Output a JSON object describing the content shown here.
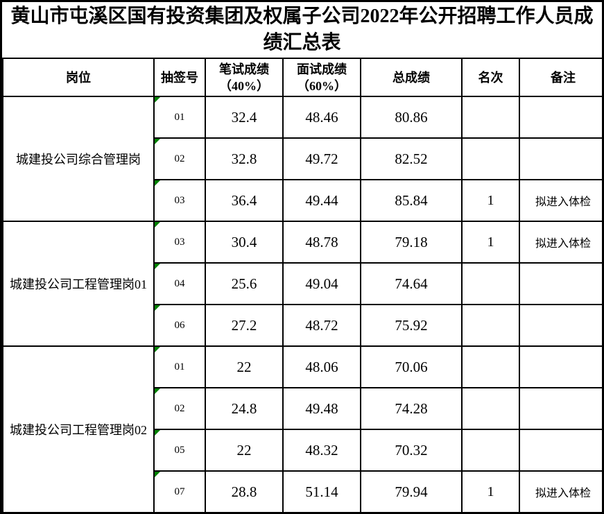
{
  "title": "黄山市屯溪区国有投资集团及权属子公司2022年公开招聘工作人员成绩汇总表",
  "columns": {
    "position": {
      "label": "岗位"
    },
    "lot": {
      "label": "抽签号"
    },
    "written": {
      "label": "笔试成绩",
      "sublabel": "（40%）"
    },
    "interview": {
      "label": "面试成绩",
      "sublabel": "（60%）"
    },
    "total": {
      "label": "总成绩"
    },
    "rank": {
      "label": "名次"
    },
    "note": {
      "label": "备注"
    }
  },
  "groups": [
    {
      "position": "城建投公司综合管理岗",
      "rows": [
        {
          "lot": "01",
          "written": "32.4",
          "interview": "48.46",
          "total": "80.86",
          "rank": "",
          "note": ""
        },
        {
          "lot": "02",
          "written": "32.8",
          "interview": "49.72",
          "total": "82.52",
          "rank": "",
          "note": ""
        },
        {
          "lot": "03",
          "written": "36.4",
          "interview": "49.44",
          "total": "85.84",
          "rank": "1",
          "note": "拟进入体检"
        }
      ]
    },
    {
      "position": "城建投公司工程管理岗01",
      "rows": [
        {
          "lot": "03",
          "written": "30.4",
          "interview": "48.78",
          "total": "79.18",
          "rank": "1",
          "note": "拟进入体检"
        },
        {
          "lot": "04",
          "written": "25.6",
          "interview": "49.04",
          "total": "74.64",
          "rank": "",
          "note": ""
        },
        {
          "lot": "06",
          "written": "27.2",
          "interview": "48.72",
          "total": "75.92",
          "rank": "",
          "note": ""
        }
      ]
    },
    {
      "position": "城建投公司工程管理岗02",
      "rows": [
        {
          "lot": "01",
          "written": "22",
          "interview": "48.06",
          "total": "70.06",
          "rank": "",
          "note": ""
        },
        {
          "lot": "02",
          "written": "24.8",
          "interview": "49.48",
          "total": "74.28",
          "rank": "",
          "note": ""
        },
        {
          "lot": "05",
          "written": "22",
          "interview": "48.32",
          "total": "70.32",
          "rank": "",
          "note": ""
        },
        {
          "lot": "07",
          "written": "28.8",
          "interview": "51.14",
          "total": "79.94",
          "rank": "1",
          "note": "拟进入体检"
        }
      ]
    }
  ],
  "icons": {
    "error_indicator": "excel-number-stored-as-text-triangle"
  },
  "colors": {
    "error_indicator_green": "#008000",
    "border": "#000000",
    "background": "#ffffff",
    "text": "#000000"
  }
}
